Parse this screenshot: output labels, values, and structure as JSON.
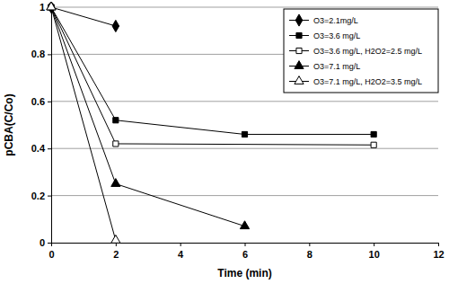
{
  "chart_data": {
    "type": "line",
    "x_label": "Time (min)",
    "y_label": "pCBA(C/Co)",
    "xlim": [
      0,
      12
    ],
    "xticks": [
      0,
      2,
      4,
      6,
      8,
      10,
      12
    ],
    "ylim": [
      0,
      1
    ],
    "yticks": [
      0,
      0.2,
      0.4,
      0.6,
      0.8,
      1
    ],
    "grid": true,
    "legend": "top-right",
    "series": [
      {
        "name": "O3=2.1mg/L",
        "color": "#000000",
        "marker": "diamond",
        "x": [
          0,
          2
        ],
        "values": [
          1,
          0.92
        ]
      },
      {
        "name": "O3=3.6 mg/L",
        "color": "#000000",
        "marker": "square",
        "x": [
          0,
          2,
          6,
          10
        ],
        "values": [
          1,
          0.52,
          0.46,
          0.46
        ]
      },
      {
        "name": "O3=3.6 mg/L, H2O2=2.5 mg/L",
        "color": "#000000",
        "marker": "square-open",
        "x": [
          0,
          2,
          10
        ],
        "values": [
          1,
          0.42,
          0.415
        ]
      },
      {
        "name": "O3=7.1 mg/L",
        "color": "#000000",
        "marker": "triangle",
        "x": [
          0,
          2,
          6
        ],
        "values": [
          1,
          0.25,
          0.07
        ]
      },
      {
        "name": "O3=7.1 mg/L, H2O2=3.5 mg/L",
        "color": "#000000",
        "marker": "triangle-open",
        "x": [
          0,
          2
        ],
        "values": [
          1,
          0.01
        ]
      }
    ]
  }
}
